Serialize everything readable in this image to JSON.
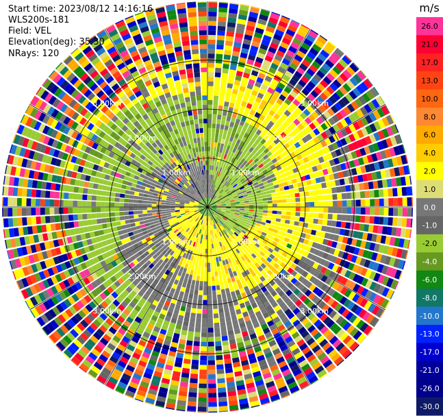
{
  "info": {
    "start_time": "Start time: 2023/08/12 14:16:16",
    "instrument": "WLS200s-181",
    "field": "Field: VEL",
    "elevation": "Elevation(deg): 35.30",
    "nrays": "NRays: 120"
  },
  "chart_data": {
    "type": "heatmap",
    "projection": "polar-ppi",
    "title": "",
    "field": "VEL",
    "units": "m/s",
    "n_rays": 120,
    "elevation_deg": 35.3,
    "range_rings_km": [
      1.0,
      2.0,
      3.0
    ],
    "range_ring_labels": [
      "1.00km",
      "2.00km",
      "3.00km"
    ],
    "max_range_km": 4.2,
    "spoke_angles_deg": [
      0,
      30,
      60,
      90,
      120,
      150
    ],
    "colorbar": {
      "label": "m/s",
      "tick_labels": [
        "26.0",
        "21.0",
        "17.0",
        "13.0",
        "10.0",
        "8.0",
        "6.0",
        "4.0",
        "2.0",
        "1.0",
        "0.0",
        "-1.0",
        "-2.0",
        "-4.0",
        "-6.0",
        "-8.0",
        "-10.0",
        "-13.0",
        "-17.0",
        "-21.0",
        "-26.0",
        "-30.0"
      ],
      "colors": [
        "#ff3399",
        "#ff0033",
        "#ff2222",
        "#ff4411",
        "#ff6611",
        "#ff8833",
        "#ffaa00",
        "#ffcc00",
        "#ffff00",
        "#dddd77",
        "#777777",
        "#666666",
        "#99cc33",
        "#669922",
        "#118811",
        "#117766",
        "#2277cc",
        "#0022ff",
        "#0000cc",
        "#000099",
        "#00008b",
        "#0f1a66"
      ]
    }
  }
}
